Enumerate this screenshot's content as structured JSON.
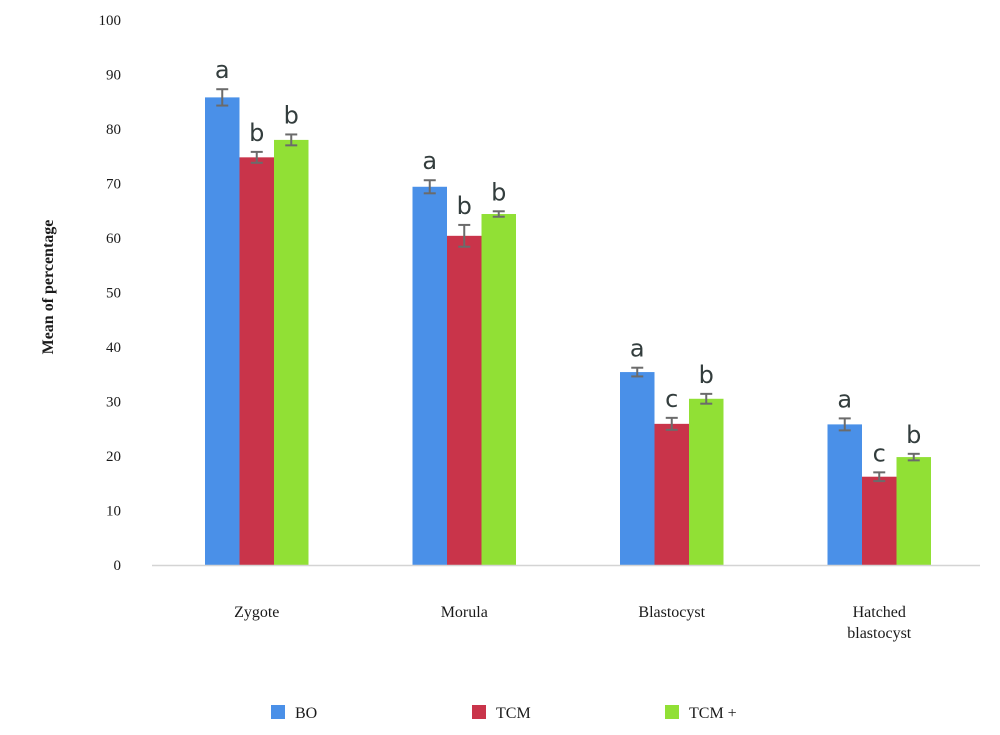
{
  "chart_data": {
    "type": "bar",
    "ylabel": "Mean of percentage",
    "ylim": [
      0,
      100
    ],
    "yticks": [
      0,
      10,
      20,
      30,
      40,
      50,
      60,
      70,
      80,
      90,
      100
    ],
    "grid": false,
    "legend_position": "bottom",
    "categories": [
      [
        "Zygote"
      ],
      [
        "Morula"
      ],
      [
        "Blastocyst"
      ],
      [
        "Hatched",
        "blastocyst"
      ]
    ],
    "series": [
      {
        "name": "BO",
        "color": "#4a90e8",
        "values": [
          85.8,
          69.4,
          35.4,
          25.8
        ],
        "errors": [
          1.5,
          1.2,
          0.8,
          1.1
        ],
        "sig": [
          "a",
          "a",
          "a",
          "a"
        ]
      },
      {
        "name": "TCM",
        "color": "#c9344a",
        "values": [
          74.8,
          60.4,
          25.9,
          16.2
        ],
        "errors": [
          1.0,
          2.0,
          1.1,
          0.8
        ],
        "sig": [
          "b",
          "b",
          "c",
          "c"
        ]
      },
      {
        "name": "TCM +",
        "color": "#91e035",
        "values": [
          78.0,
          64.4,
          30.5,
          19.8
        ],
        "errors": [
          1.0,
          0.5,
          0.9,
          0.6
        ],
        "sig": [
          "b",
          "b",
          "b",
          "b"
        ]
      }
    ]
  }
}
